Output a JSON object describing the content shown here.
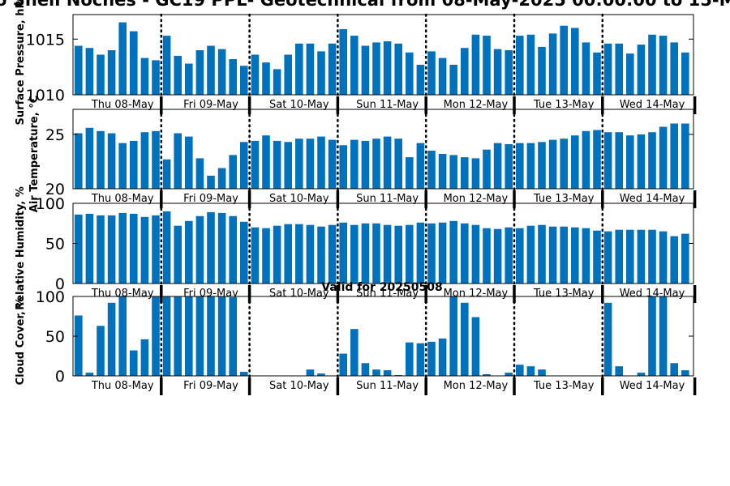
{
  "title": "o Shell Noches - GC19 PPL- Geotechnical from 08-May-2025 00:00:00 to 15-M",
  "valid_label": "Valid for 20250508",
  "colors": {
    "bar": "#0072bd",
    "axis": "#000000"
  },
  "days": [
    "Thu 08-May",
    "Fri 09-May",
    "Sat 10-May",
    "Sun 11-May",
    "Mon 12-May",
    "Tue 13-May",
    "Wed 14-May"
  ],
  "chart_data": [
    {
      "type": "bar",
      "ylabel": "Surface Pressure, hPa",
      "ylim": [
        1010,
        1017.2
      ],
      "yticks": [
        1010,
        1015
      ],
      "values": [
        1014.4,
        1014.2,
        1013.6,
        1014.0,
        1016.5,
        1015.7,
        1013.3,
        1013.1,
        1015.3,
        1013.5,
        1012.8,
        1014.0,
        1014.4,
        1014.1,
        1013.2,
        1012.6,
        1013.6,
        1012.9,
        1012.3,
        1013.6,
        1014.6,
        1014.6,
        1013.9,
        1014.6,
        1015.9,
        1015.3,
        1014.4,
        1014.7,
        1014.8,
        1014.6,
        1013.8,
        1012.7,
        1013.9,
        1013.3,
        1012.7,
        1014.2,
        1015.4,
        1015.3,
        1014.1,
        1014.0,
        1015.3,
        1015.4,
        1014.3,
        1015.5,
        1016.2,
        1016.0,
        1014.7,
        1013.8,
        1014.6,
        1014.6,
        1013.7,
        1014.5,
        1015.4,
        1015.3,
        1014.7,
        1013.8
      ]
    },
    {
      "type": "bar",
      "ylabel": "Air Temperature, °C",
      "ylim": [
        20,
        27.3
      ],
      "yticks": [
        20,
        25
      ],
      "values": [
        25.1,
        25.6,
        25.3,
        25.1,
        24.2,
        24.4,
        25.2,
        25.3,
        22.7,
        25.1,
        24.8,
        22.8,
        21.2,
        21.9,
        23.1,
        24.3,
        24.4,
        24.9,
        24.4,
        24.3,
        24.6,
        24.6,
        24.8,
        24.5,
        24.0,
        24.5,
        24.4,
        24.6,
        24.8,
        24.6,
        22.9,
        24.2,
        23.5,
        23.2,
        23.1,
        22.9,
        22.8,
        23.6,
        24.2,
        24.1,
        24.2,
        24.2,
        24.3,
        24.5,
        24.6,
        24.9,
        25.3,
        25.4,
        25.2,
        25.2,
        24.9,
        25.0,
        25.2,
        25.7,
        26.0,
        26.0
      ]
    },
    {
      "type": "bar",
      "ylabel": "Relative Humidity, %",
      "ylim": [
        0,
        100
      ],
      "yticks": [
        0,
        50,
        100
      ],
      "values": [
        86,
        87,
        85,
        85,
        88,
        87,
        83,
        85,
        90,
        72,
        78,
        84,
        89,
        88,
        84,
        77,
        70,
        69,
        72,
        74,
        74,
        73,
        71,
        73,
        76,
        73,
        75,
        75,
        73,
        72,
        73,
        76,
        75,
        76,
        78,
        75,
        73,
        69,
        68,
        70,
        69,
        72,
        73,
        71,
        71,
        70,
        69,
        66,
        65,
        67,
        67,
        67,
        67,
        65,
        59,
        62
      ]
    },
    {
      "type": "bar",
      "title": "Valid for 20250508",
      "ylabel": "Cloud Cover, %",
      "ylim": [
        0,
        100
      ],
      "yticks": [
        0,
        50,
        100
      ],
      "values": [
        76,
        4,
        63,
        92,
        100,
        32,
        46,
        100,
        100,
        100,
        100,
        100,
        100,
        100,
        99,
        5,
        0,
        0,
        0,
        0,
        0,
        8,
        3,
        0,
        28,
        59,
        16,
        8,
        7,
        1,
        42,
        41,
        43,
        47,
        100,
        92,
        74,
        2,
        0,
        4,
        14,
        12,
        8,
        0,
        0,
        0,
        0,
        0,
        92,
        12,
        0,
        4,
        100,
        100,
        16,
        7
      ]
    }
  ]
}
